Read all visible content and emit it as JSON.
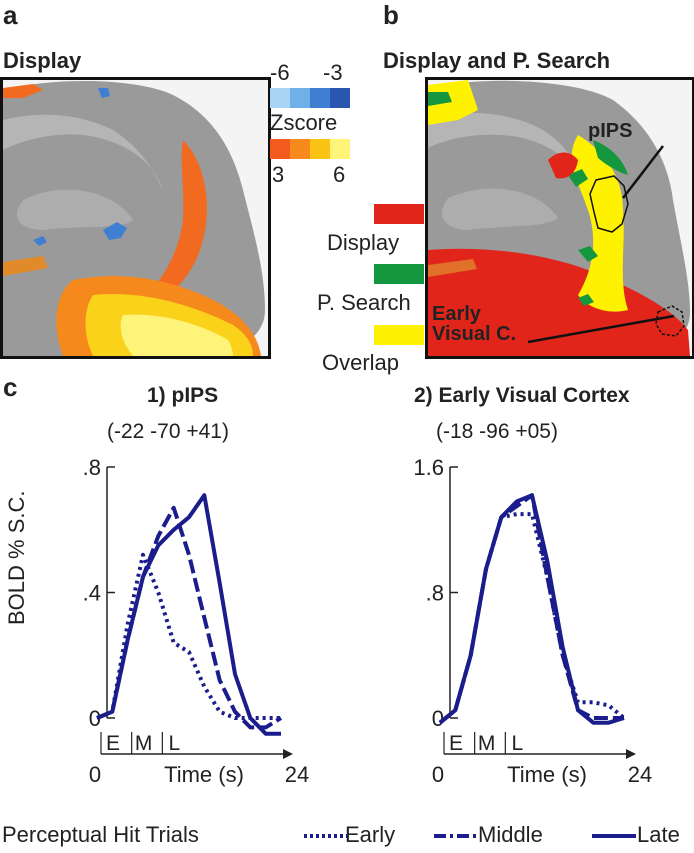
{
  "panels": {
    "a": {
      "letter": "a",
      "title": "Display"
    },
    "b": {
      "letter": "b",
      "title": "Display and P. Search"
    },
    "c": {
      "letter": "c"
    }
  },
  "zscore": {
    "neg_min": "-6",
    "neg_max": "-3",
    "label": "Zscore",
    "pos_min": "3",
    "pos_max": "6",
    "neg_colors": [
      "#a9d3f2",
      "#6fb0e8",
      "#3f7fd2",
      "#2a56b0"
    ],
    "pos_colors": [
      "#f25a1e",
      "#f78a1c",
      "#fbc314",
      "#fff47a"
    ]
  },
  "legend_b": [
    {
      "label": "Display",
      "color": "#e1251b"
    },
    {
      "label": "P. Search",
      "color": "#15973f"
    },
    {
      "label": "Overlap",
      "color": "#fff200"
    }
  ],
  "annotations": {
    "pips": "pIPS",
    "early_line1": "Early",
    "early_line2": "Visual C."
  },
  "charts": {
    "ylabel": "BOLD % S.C.",
    "xlabel": "Time (s)",
    "phase_labels": [
      "E",
      "M",
      "L"
    ],
    "x_ticks": [
      "0",
      "24"
    ]
  },
  "legend_c": {
    "prefix": "Perceptual Hit Trials",
    "items": [
      "Early",
      "Middle",
      "Late"
    ]
  },
  "chart_data": [
    {
      "type": "line",
      "title": "1) pIPS",
      "subtitle": "(-22 -70 +41)",
      "x": [
        0,
        2,
        4,
        6,
        8,
        10,
        12,
        14,
        16,
        18,
        20,
        22,
        24
      ],
      "xlim": [
        0,
        24
      ],
      "ylim": [
        0,
        0.8
      ],
      "y_tick_labels": [
        "0",
        ".4",
        ".8"
      ],
      "y_tick_values": [
        0,
        0.4,
        0.8
      ],
      "series": [
        {
          "name": "Early",
          "style": "dotted",
          "values": [
            0,
            0.02,
            0.3,
            0.52,
            0.4,
            0.24,
            0.21,
            0.1,
            0.02,
            0.0,
            0.0,
            0.0,
            0.0
          ]
        },
        {
          "name": "Middle",
          "style": "dashed",
          "values": [
            0,
            0.02,
            0.25,
            0.45,
            0.58,
            0.67,
            0.52,
            0.32,
            0.12,
            0.02,
            -0.03,
            -0.03,
            0.0
          ]
        },
        {
          "name": "Late",
          "style": "solid",
          "values": [
            0,
            0.02,
            0.25,
            0.45,
            0.55,
            0.6,
            0.64,
            0.71,
            0.43,
            0.14,
            0.0,
            -0.05,
            -0.05
          ]
        }
      ]
    },
    {
      "type": "line",
      "title": "2) Early Visual Cortex",
      "subtitle": "(-18 -96 +05)",
      "x": [
        0,
        2,
        4,
        6,
        8,
        10,
        12,
        14,
        16,
        18,
        20,
        22,
        24
      ],
      "xlim": [
        0,
        24
      ],
      "ylim": [
        0,
        1.6
      ],
      "y_tick_labels": [
        "0",
        ".8",
        "1.6"
      ],
      "y_tick_values": [
        0,
        0.8,
        1.6
      ],
      "series": [
        {
          "name": "Early",
          "style": "dotted",
          "values": [
            -0.03,
            0.05,
            0.4,
            0.95,
            1.28,
            1.3,
            1.3,
            0.9,
            0.4,
            0.1,
            0.1,
            0.08,
            0.0
          ]
        },
        {
          "name": "Middle",
          "style": "dashed",
          "values": [
            -0.03,
            0.05,
            0.4,
            0.95,
            1.28,
            1.35,
            1.42,
            0.9,
            0.4,
            0.05,
            0.0,
            0.0,
            0.0
          ]
        },
        {
          "name": "Late",
          "style": "solid",
          "values": [
            -0.03,
            0.05,
            0.4,
            0.95,
            1.28,
            1.38,
            1.42,
            1.0,
            0.45,
            0.05,
            -0.03,
            -0.03,
            0.0
          ]
        }
      ]
    }
  ]
}
